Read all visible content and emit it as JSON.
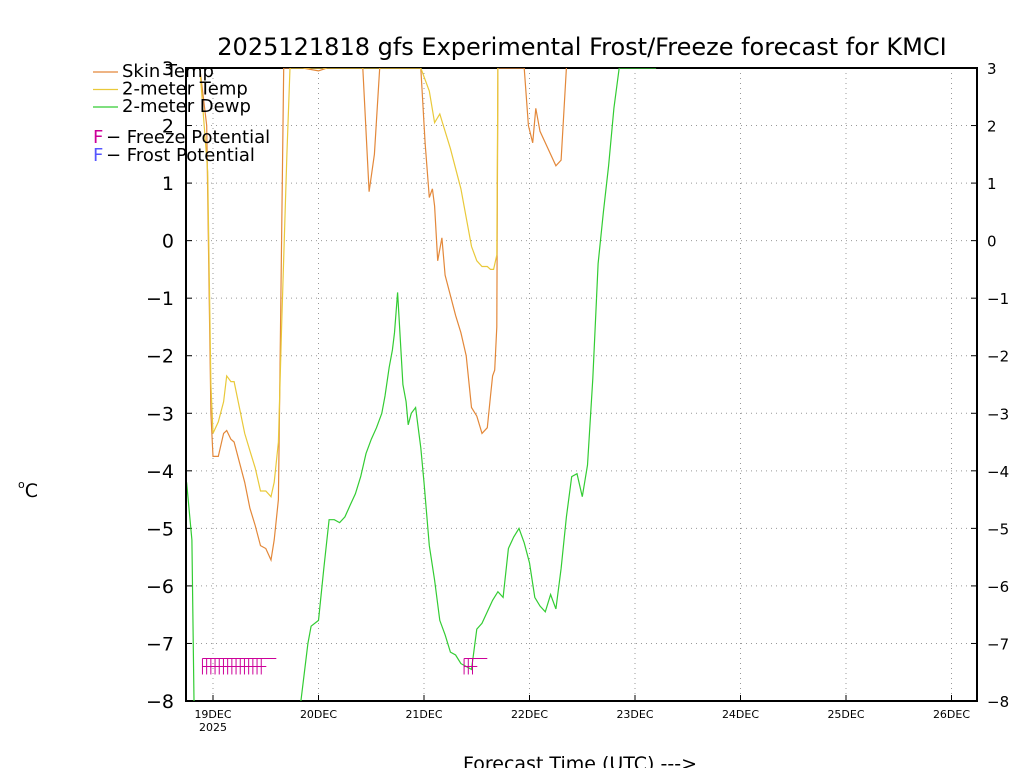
{
  "chart_data": {
    "type": "line",
    "title": "2025121818 gfs Experimental Frost/Freeze forecast for KMCI",
    "xlabel": "Forecast Time (UTC) --->",
    "ylabel": "°C",
    "ylabel_degree": "o",
    "ylabel_unit": "C",
    "ylim": [
      -8,
      3
    ],
    "xlim": [
      -0.25,
      7.3
    ],
    "grid": true,
    "yticks": [
      "−8",
      "−7",
      "−6",
      "−5",
      "−4",
      "−3",
      "−2",
      "−1",
      "0",
      "1",
      "2",
      "3"
    ],
    "ytick_values": [
      -8,
      -7,
      -6,
      -5,
      -4,
      -3,
      -2,
      -1,
      0,
      1,
      2,
      3
    ],
    "xticks": [
      {
        "label": "19DEC",
        "sub": "2025",
        "x": 0
      },
      {
        "label": "20DEC",
        "x": 1
      },
      {
        "label": "21DEC",
        "x": 2
      },
      {
        "label": "22DEC",
        "x": 3
      },
      {
        "label": "23DEC",
        "x": 4
      },
      {
        "label": "24DEC",
        "x": 5
      },
      {
        "label": "25DEC",
        "x": 6
      },
      {
        "label": "26DEC",
        "x": 7
      }
    ],
    "series": [
      {
        "name": "Skin Temp",
        "color": "#E3883A",
        "x": [
          -0.125,
          -0.06,
          -0.02,
          0.0,
          0.05,
          0.1,
          0.13,
          0.17,
          0.2,
          0.25,
          0.3,
          0.35,
          0.4,
          0.45,
          0.5,
          0.55,
          0.58,
          0.62,
          0.67,
          0.73,
          0.85,
          1.0,
          1.08,
          1.16,
          1.2,
          1.25,
          1.3,
          1.42,
          1.48,
          1.53,
          1.58,
          1.62,
          1.7,
          1.8,
          1.9,
          1.97,
          2.01,
          2.05,
          2.08,
          2.1,
          2.13,
          2.17,
          2.2,
          2.3,
          2.35,
          2.4,
          2.45,
          2.5,
          2.55,
          2.6,
          2.63,
          2.65,
          2.67,
          2.69,
          2.7,
          2.95,
          2.99,
          3.03,
          3.06,
          3.1,
          3.15,
          3.25,
          3.3,
          3.35
        ],
        "y": [
          3,
          2,
          -3,
          -3.75,
          -3.75,
          -3.35,
          -3.3,
          -3.45,
          -3.5,
          -3.85,
          -4.2,
          -4.65,
          -4.95,
          -5.3,
          -5.35,
          -5.55,
          -5.2,
          -4.5,
          3,
          3,
          3,
          2.95,
          3,
          3,
          3,
          3,
          3,
          3,
          0.85,
          1.5,
          3,
          3,
          3,
          3,
          3,
          3,
          1.7,
          0.75,
          0.9,
          0.6,
          -0.35,
          0.05,
          -0.6,
          -1.3,
          -1.6,
          -2.0,
          -2.9,
          -3.05,
          -3.35,
          -3.25,
          -2.7,
          -2.35,
          -2.25,
          -1.5,
          3,
          3,
          2.0,
          1.7,
          2.3,
          1.9,
          1.7,
          1.3,
          1.4,
          3
        ]
      },
      {
        "name": "2-meter Temp",
        "color": "#E9C93A",
        "x": [
          -0.125,
          -0.05,
          -0.02,
          0.0,
          0.05,
          0.1,
          0.13,
          0.17,
          0.2,
          0.25,
          0.3,
          0.35,
          0.4,
          0.45,
          0.5,
          0.55,
          0.58,
          0.62,
          0.65,
          0.7,
          0.73,
          1.0,
          1.9,
          1.97,
          2.05,
          2.1,
          2.15,
          2.25,
          2.35,
          2.45,
          2.5,
          2.55,
          2.6,
          2.63,
          2.66,
          2.69,
          2.7
        ],
        "y": [
          3,
          1.2,
          -2.5,
          -3.35,
          -3.15,
          -2.8,
          -2.35,
          -2.45,
          -2.45,
          -2.9,
          -3.35,
          -3.65,
          -3.95,
          -4.35,
          -4.35,
          -4.45,
          -4.2,
          -3.5,
          -1.5,
          1.5,
          3,
          3,
          3,
          3,
          2.6,
          2.05,
          2.2,
          1.6,
          0.9,
          -0.1,
          -0.35,
          -0.45,
          -0.45,
          -0.5,
          -0.5,
          -0.25,
          3
        ]
      },
      {
        "name": "2-meter Dewp",
        "color": "#33CC33",
        "x": [
          -0.25,
          -0.2,
          -0.18,
          -0.15,
          0.8,
          0.9,
          0.93,
          1.0,
          1.05,
          1.1,
          1.15,
          1.2,
          1.25,
          1.3,
          1.35,
          1.4,
          1.45,
          1.5,
          1.55,
          1.6,
          1.63,
          1.67,
          1.7,
          1.72,
          1.75,
          1.8,
          1.83,
          1.85,
          1.88,
          1.92,
          1.97,
          2.0,
          2.05,
          2.1,
          2.15,
          2.2,
          2.25,
          2.3,
          2.35,
          2.4,
          2.45,
          2.5,
          2.55,
          2.6,
          2.65,
          2.7,
          2.75,
          2.8,
          2.85,
          2.9,
          2.95,
          3.0,
          3.05,
          3.1,
          3.15,
          3.2,
          3.25,
          3.3,
          3.35,
          3.4,
          3.45,
          3.5,
          3.55,
          3.6,
          3.63,
          3.65,
          3.7,
          3.75,
          3.8,
          3.85,
          3.9,
          3.95,
          4.0,
          4.05,
          4.1,
          4.15,
          4.2
        ],
        "y": [
          -4.2,
          -5.2,
          -8.0,
          -8.5,
          -8.5,
          -7.0,
          -6.7,
          -6.6,
          -5.7,
          -4.85,
          -4.85,
          -4.9,
          -4.8,
          -4.6,
          -4.4,
          -4.1,
          -3.7,
          -3.45,
          -3.25,
          -3.0,
          -2.7,
          -2.2,
          -1.9,
          -1.6,
          -0.9,
          -2.5,
          -2.8,
          -3.2,
          -3.0,
          -2.9,
          -3.6,
          -4.2,
          -5.3,
          -5.9,
          -6.6,
          -6.85,
          -7.15,
          -7.2,
          -7.35,
          -7.4,
          -7.45,
          -6.75,
          -6.65,
          -6.45,
          -6.25,
          -6.1,
          -6.2,
          -5.35,
          -5.15,
          -5.0,
          -5.25,
          -5.6,
          -6.2,
          -6.35,
          -6.45,
          -6.15,
          -6.4,
          -5.7,
          -4.8,
          -4.1,
          -4.05,
          -4.45,
          -3.9,
          -2.4,
          -1.2,
          -0.4,
          0.5,
          1.3,
          2.3,
          3.0,
          3.0,
          3.0,
          3.0,
          3.0,
          3.0,
          3.0,
          3.0
        ]
      }
    ],
    "potential_markers": [
      {
        "type": "Freeze Potential",
        "color": "#CC0099",
        "x_start": -0.1,
        "x_end": 0.6,
        "y": -7.4
      },
      {
        "type": "Freeze Potential",
        "color": "#CC0099",
        "x_start": 2.38,
        "x_end": 2.6,
        "y": -7.4
      }
    ],
    "legend": {
      "placement": "top-left",
      "items": [
        {
          "label": "Skin Temp",
          "color": "#E3883A"
        },
        {
          "label": "2-meter Temp",
          "color": "#E9C93A"
        },
        {
          "label": "2-meter Dewp",
          "color": "#33CC33"
        }
      ],
      "potential": [
        {
          "glyph": "F",
          "label": " − Freeze Potential",
          "color": "#CC0099"
        },
        {
          "glyph": "F",
          "label": " − Frost Potential",
          "color": "#5555FF"
        }
      ]
    }
  }
}
